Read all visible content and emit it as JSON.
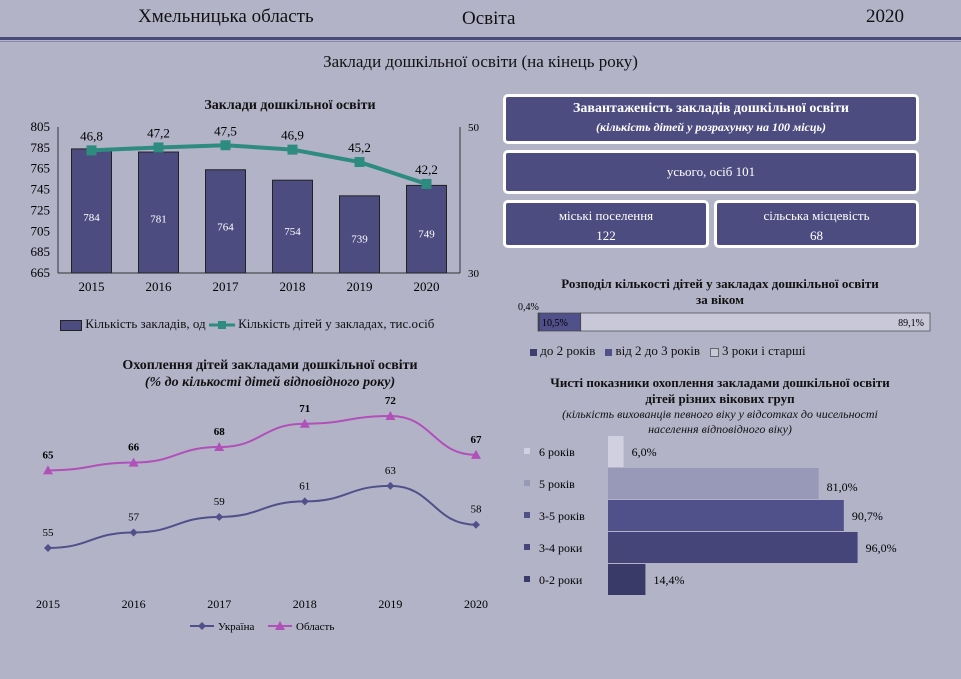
{
  "header": {
    "region": "Хмельницька область",
    "topic": "Освіта",
    "year": "2020"
  },
  "page_title": "Заклади дошкільної освіти (на кінець року)",
  "colors": {
    "background": "#b3b3c8",
    "bar": "#4c4c80",
    "teal": "#2e8b7f",
    "ukraine": "#50508a",
    "oblast": "#b050b8"
  },
  "chart_data": [
    {
      "type": "bar",
      "title": "Заклади дошкільної освіти",
      "categories": [
        "2015",
        "2016",
        "2017",
        "2018",
        "2019",
        "2020"
      ],
      "y_ticks": [
        "805",
        "785",
        "765",
        "745",
        "725",
        "705",
        "685",
        "665"
      ],
      "y2_ticks": [
        "50",
        "30"
      ],
      "ylim": [
        665,
        805
      ],
      "y2lim": [
        30,
        50
      ],
      "series": [
        {
          "name": "Кількість закладів, од",
          "type": "bar",
          "values": [
            784,
            781,
            764,
            754,
            739,
            749
          ],
          "labels": [
            "784",
            "781",
            "764",
            "754",
            "739",
            "749"
          ]
        },
        {
          "name": "Кількість дітей у закладах, тис.осіб",
          "type": "line",
          "axis": "secondary",
          "values": [
            46.8,
            47.2,
            47.5,
            46.9,
            45.2,
            42.2
          ],
          "labels": [
            "46,8",
            "47,2",
            "47,5",
            "46,9",
            "45,2",
            "42,2"
          ]
        }
      ]
    },
    {
      "type": "line",
      "title": "Охоплення дітей закладами дошкільної освіти",
      "subtitle": "(% до кількості дітей відповідного року)",
      "categories": [
        "2015",
        "2016",
        "2017",
        "2018",
        "2019",
        "2020"
      ],
      "series": [
        {
          "name": "Україна",
          "values": [
            55,
            57,
            59,
            61,
            63,
            58
          ]
        },
        {
          "name": "Область",
          "values": [
            65,
            66,
            68,
            71,
            72,
            67
          ]
        }
      ]
    },
    {
      "type": "bar",
      "title": "Розподіл кількості дітей у закладах дошкільної освіти за віком",
      "orientation": "stacked-horizontal",
      "series": [
        {
          "name": "до 2 років",
          "value": 0.4,
          "label": "0,4%"
        },
        {
          "name": "від 2 до 3 років",
          "value": 10.5,
          "label": "10,5%"
        },
        {
          "name": "3 роки і старші",
          "value": 89.1,
          "label": "89,1%"
        }
      ]
    },
    {
      "type": "bar",
      "title": "Чисті показники охоплення закладами дошкільної освіти дітей різних вікових груп",
      "subtitle": "(кількість вихованців певного віку у відсотках до чисельності населення відповідного віку)",
      "orientation": "horizontal",
      "categories": [
        "6 років",
        "5 років",
        "3-5 років",
        "3-4 роки",
        "0-2 роки"
      ],
      "values": [
        6.0,
        81.0,
        90.7,
        96.0,
        14.4
      ],
      "labels": [
        "6,0%",
        "81,0%",
        "90,7%",
        "96,0%",
        "14,4%"
      ]
    }
  ],
  "workload": {
    "title": "Завантаженість закладів дошкільної освіти",
    "subtitle": "(кількість дітей у розрахунку на 100 місць)",
    "total": "усього, осіб 101",
    "urban_label": "міські поселення",
    "urban_value": "122",
    "rural_label": "сільська місцевість",
    "rural_value": "68"
  }
}
